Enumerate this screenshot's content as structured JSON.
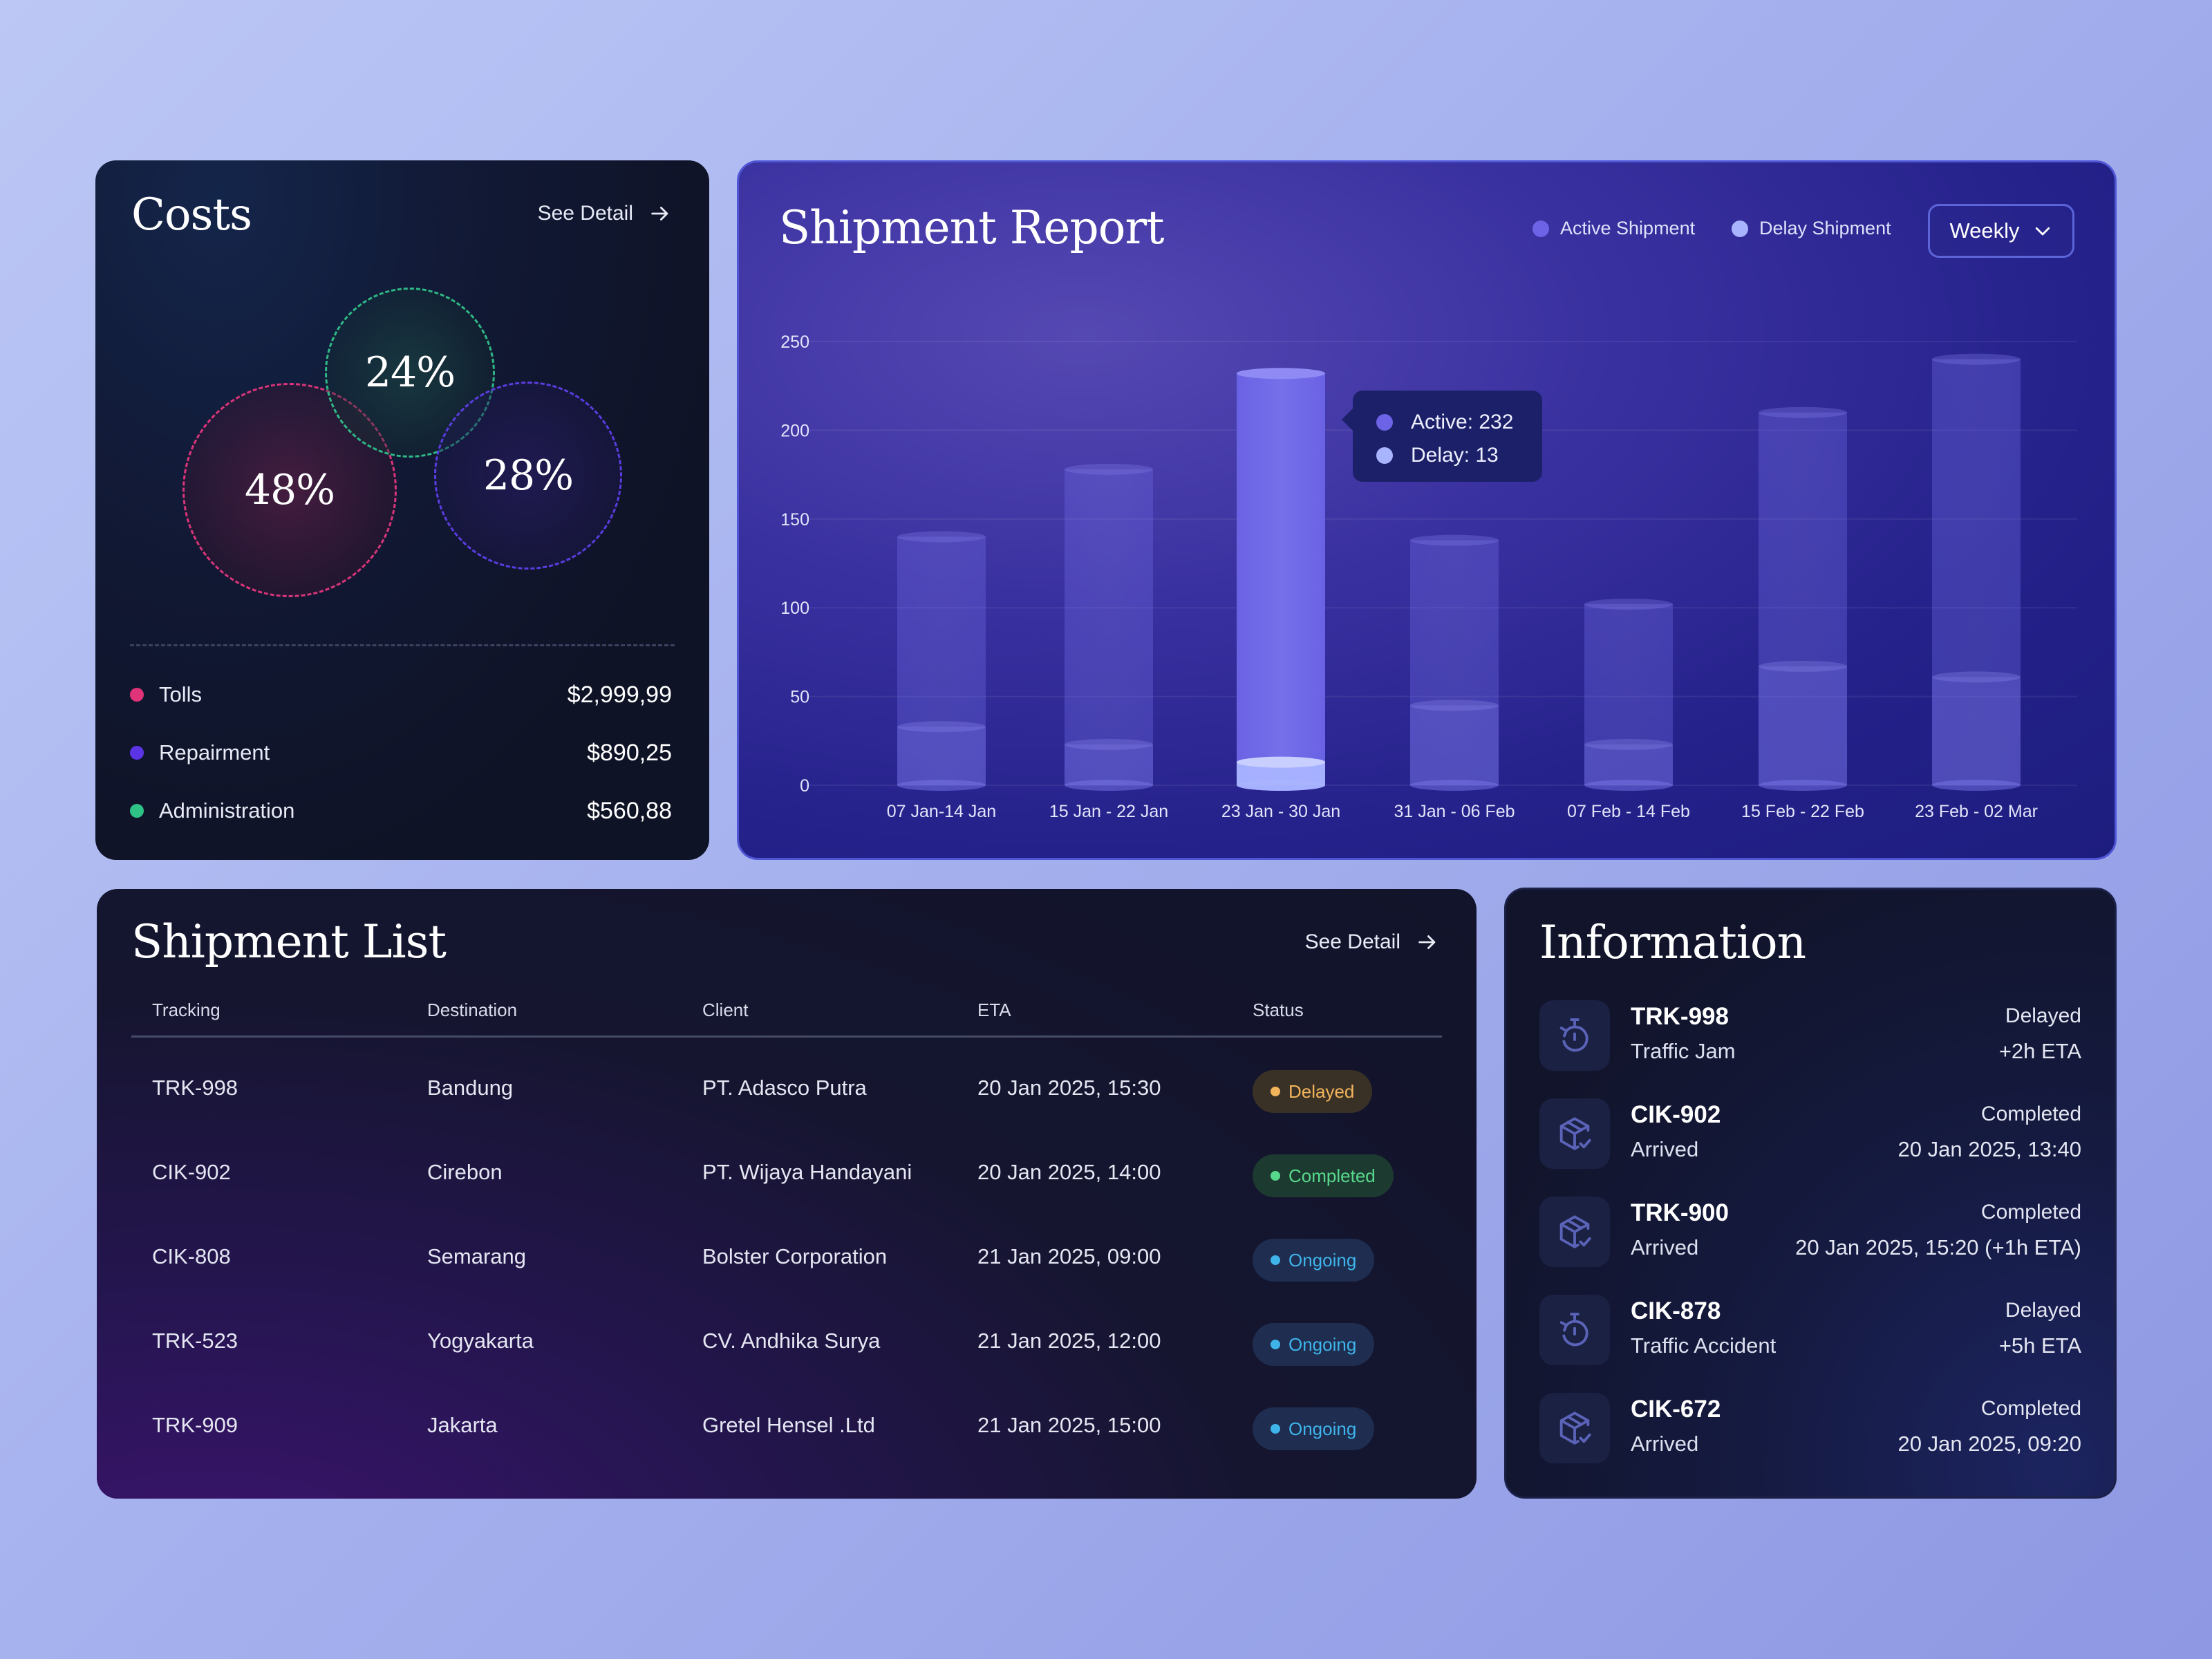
{
  "costs": {
    "title": "Costs",
    "see_detail": "See Detail",
    "items": [
      {
        "label": "Tolls",
        "value": "$2,999,99",
        "percent": "48%",
        "color": "#e0337a"
      },
      {
        "label": "Repairment",
        "value": "$890,25",
        "percent": "28%",
        "color": "#5b34e6"
      },
      {
        "label": "Administration",
        "value": "$560,88",
        "percent": "24%",
        "color": "#2fc286"
      }
    ]
  },
  "report": {
    "title": "Shipment Report",
    "legend": [
      {
        "label": "Active Shipment",
        "color": "#6d63e6"
      },
      {
        "label": "Delay Shipment",
        "color": "#a9b4ff"
      }
    ],
    "period_select": "Weekly",
    "tooltip": {
      "active": "Active: 232",
      "delay": "Delay: 13"
    }
  },
  "chart_data": {
    "type": "bar",
    "categories": [
      "07 Jan-14 Jan",
      "15 Jan - 22 Jan",
      "23 Jan - 30 Jan",
      "31 Jan - 06 Feb",
      "07 Feb - 14 Feb",
      "15 Feb - 22 Feb",
      "23 Feb - 02 Mar"
    ],
    "series": [
      {
        "name": "Active Shipment",
        "values": [
          140,
          178,
          232,
          138,
          102,
          210,
          240
        ]
      },
      {
        "name": "Delay Shipment",
        "values": [
          33,
          23,
          13,
          45,
          23,
          67,
          61
        ]
      }
    ],
    "yticks": [
      0,
      50,
      100,
      150,
      200,
      250
    ],
    "ylim": [
      0,
      250
    ],
    "highlight_index": 2,
    "grid": true
  },
  "list": {
    "title": "Shipment List",
    "see_detail": "See Detail",
    "columns": [
      "Tracking",
      "Destination",
      "Client",
      "ETA",
      "Status"
    ],
    "rows": [
      {
        "tracking": "TRK-998",
        "destination": "Bandung",
        "client": "PT. Adasco Putra",
        "eta": "20 Jan 2025, 15:30",
        "status": "Delayed"
      },
      {
        "tracking": "CIK-902",
        "destination": "Cirebon",
        "client": "PT. Wijaya Handayani",
        "eta": "20 Jan 2025, 14:00",
        "status": "Completed"
      },
      {
        "tracking": "CIK-808",
        "destination": "Semarang",
        "client": "Bolster Corporation",
        "eta": "21 Jan 2025, 09:00",
        "status": "Ongoing"
      },
      {
        "tracking": "TRK-523",
        "destination": "Yogyakarta",
        "client": "CV. Andhika Surya",
        "eta": "21 Jan 2025, 12:00",
        "status": "Ongoing"
      },
      {
        "tracking": "TRK-909",
        "destination": "Jakarta",
        "client": "Gretel Hensel .Ltd",
        "eta": "21 Jan 2025, 15:00",
        "status": "Ongoing"
      }
    ]
  },
  "info": {
    "title": "Information",
    "items": [
      {
        "id": "TRK-998",
        "detail": "Traffic Jam",
        "status": "Delayed",
        "time": "+2h ETA",
        "icon": "timer-icon"
      },
      {
        "id": "CIK-902",
        "detail": "Arrived",
        "status": "Completed",
        "time": "20 Jan 2025, 13:40",
        "icon": "package-check-icon"
      },
      {
        "id": "TRK-900",
        "detail": "Arrived",
        "status": "Completed",
        "time": "20 Jan 2025, 15:20 (+1h ETA)",
        "icon": "package-check-icon"
      },
      {
        "id": "CIK-878",
        "detail": "Traffic Accident",
        "status": "Delayed",
        "time": "+5h ETA",
        "icon": "timer-icon"
      },
      {
        "id": "CIK-672",
        "detail": "Arrived",
        "status": "Completed",
        "time": "20 Jan 2025, 09:20",
        "icon": "package-check-icon"
      }
    ]
  }
}
